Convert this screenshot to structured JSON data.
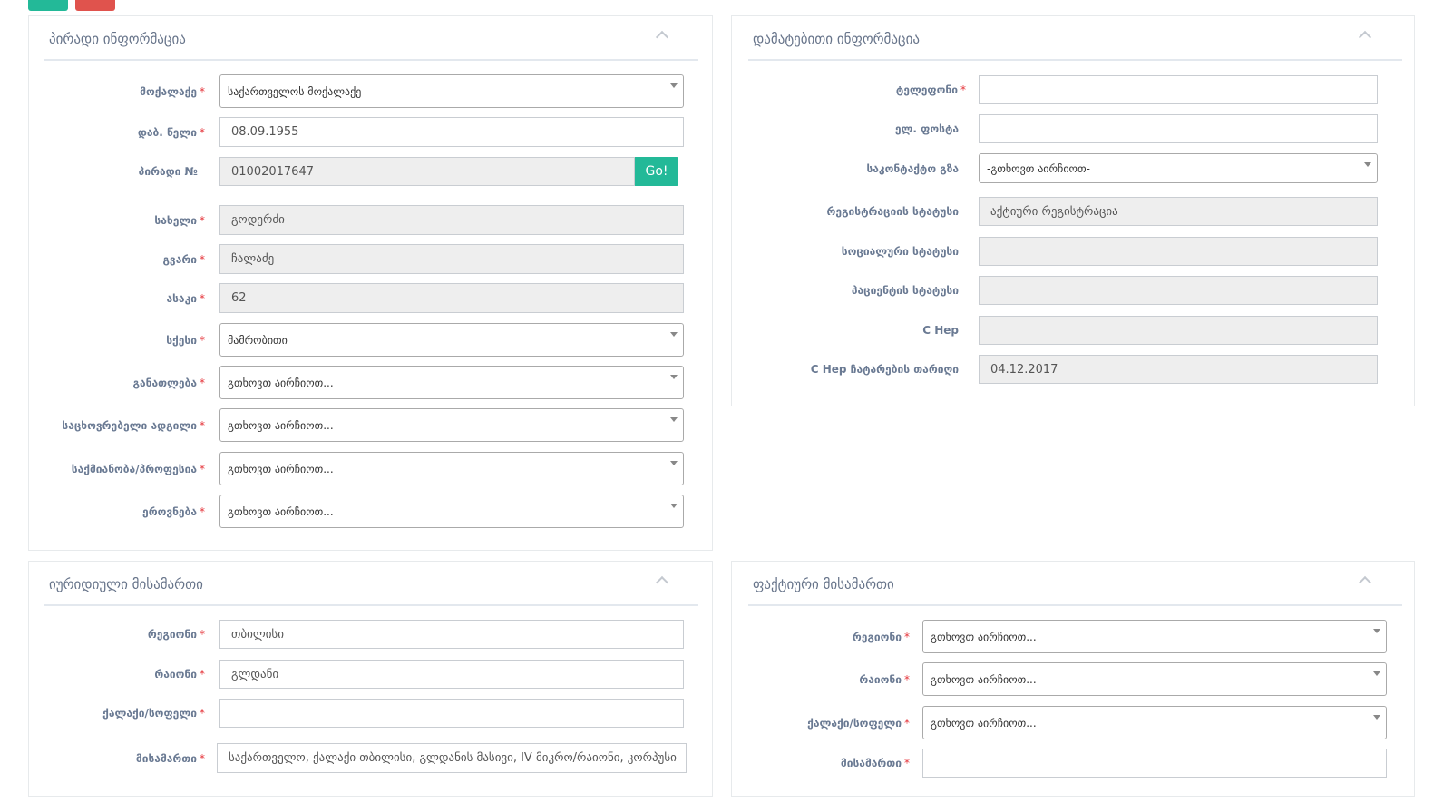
{
  "colors": {
    "primary": "#23b998",
    "danger": "#e0534d",
    "label": "#6a7a93",
    "required": "#e5343a"
  },
  "top_buttons": [
    {
      "name": "save-button",
      "color": "#23b998"
    },
    {
      "name": "delete-button",
      "color": "#e0534d"
    }
  ],
  "panels": [
    {
      "id": "personal",
      "title": "პირადი ინფორმაცია",
      "collapse_icon": "chevron-up-icon",
      "fields": [
        {
          "name": "citizenship",
          "label": "მოქალაქე",
          "required": true,
          "type": "select",
          "value": "საქართველოს მოქალაქე"
        },
        {
          "name": "birth-date",
          "label": "დაბ. წელი",
          "required": true,
          "type": "text",
          "value": "08.09.1955"
        },
        {
          "name": "personal-id",
          "label": "პირადი №",
          "required": false,
          "type": "readonly",
          "value": "01002017647",
          "button": "Go!"
        },
        {
          "name": "first-name",
          "label": "სახელი",
          "required": true,
          "type": "readonly",
          "value": "გოდერძი"
        },
        {
          "name": "last-name",
          "label": "გვარი",
          "required": true,
          "type": "readonly",
          "value": "ჩალაძე"
        },
        {
          "name": "age",
          "label": "ასაკი",
          "required": true,
          "type": "readonly",
          "value": "62"
        },
        {
          "name": "sex",
          "label": "სქესი",
          "required": true,
          "type": "select",
          "value": "მამრობითი"
        },
        {
          "name": "education",
          "label": "განათლება",
          "required": true,
          "type": "select",
          "value": "გთხოვთ აირჩიოთ..."
        },
        {
          "name": "residence",
          "label": "საცხოვრებელი ადგილი",
          "required": true,
          "type": "select",
          "value": "გთხოვთ აირჩიოთ..."
        },
        {
          "name": "occupation",
          "label": "საქმიანობა/პროფესია",
          "required": true,
          "type": "select",
          "value": "გთხოვთ აირჩიოთ..."
        },
        {
          "name": "ethnicity",
          "label": "ეროვნება",
          "required": true,
          "type": "select",
          "value": "გთხოვთ აირჩიოთ..."
        }
      ]
    },
    {
      "id": "additional",
      "title": "დამატებითი ინფორმაცია",
      "collapse_icon": "chevron-up-icon",
      "fields": [
        {
          "name": "phone",
          "label": "ტელეფონი",
          "required": true,
          "type": "text",
          "value": ""
        },
        {
          "name": "email",
          "label": "ელ. ფოსტა",
          "required": false,
          "type": "text",
          "value": ""
        },
        {
          "name": "contact-method",
          "label": "საკონტაქტო გზა",
          "required": false,
          "type": "select",
          "value": "-გთხოვთ აირჩიოთ-"
        },
        {
          "name": "registration-status",
          "label": "რეგისტრაციის სტატუსი",
          "required": false,
          "type": "readonly",
          "value": "აქტიური რეგისტრაცია"
        },
        {
          "name": "social-status",
          "label": "სოციალური სტატუსი",
          "required": false,
          "type": "readonly",
          "value": ""
        },
        {
          "name": "patient-status",
          "label": "პაციენტის სტატუსი",
          "required": false,
          "type": "readonly",
          "value": ""
        },
        {
          "name": "c-hep",
          "label": "C Hep",
          "required": false,
          "type": "readonly",
          "value": ""
        },
        {
          "name": "c-hep-date",
          "label": "C Hep ჩატარების თარიღი",
          "required": false,
          "type": "readonly",
          "value": "04.12.2017"
        }
      ]
    },
    {
      "id": "legal-address",
      "title": "იურიდიული მისამართი",
      "collapse_icon": "chevron-up-icon",
      "fields": [
        {
          "name": "legal-region",
          "label": "რეგიონი",
          "required": true,
          "type": "text",
          "value": "თბილისი"
        },
        {
          "name": "legal-district",
          "label": "რაიონი",
          "required": true,
          "type": "text",
          "value": "გლდანი"
        },
        {
          "name": "legal-city",
          "label": "ქალაქი/სოფელი",
          "required": true,
          "type": "text",
          "value": ""
        },
        {
          "name": "legal-address",
          "label": "მისამართი",
          "required": true,
          "type": "text",
          "value": "საქართველო, ქალაქი თბილისი, გლდანის მასივი, IV მიკრო/რაიონი, კორპუსი"
        }
      ]
    },
    {
      "id": "actual-address",
      "title": "ფაქტიური მისამართი",
      "collapse_icon": "chevron-up-icon",
      "fields": [
        {
          "name": "actual-region",
          "label": "რეგიონი",
          "required": true,
          "type": "select",
          "value": "გთხოვთ აირჩიოთ..."
        },
        {
          "name": "actual-district",
          "label": "რაიონი",
          "required": true,
          "type": "select",
          "value": "გთხოვთ აირჩიოთ..."
        },
        {
          "name": "actual-city",
          "label": "ქალაქი/სოფელი",
          "required": true,
          "type": "select",
          "value": "გთხოვთ აირჩიოთ..."
        },
        {
          "name": "actual-address",
          "label": "მისამართი",
          "required": true,
          "type": "text",
          "value": ""
        }
      ]
    }
  ]
}
